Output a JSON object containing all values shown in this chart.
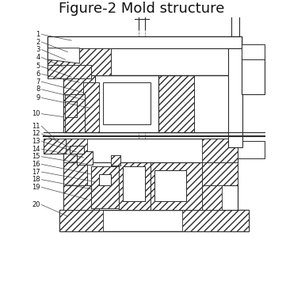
{
  "title": "Figure-2 Mold structure",
  "title_fontsize": 13,
  "bg_color": "#ffffff",
  "line_color": "#2a2a2a",
  "figsize": [
    3.61,
    3.75
  ],
  "dpi": 100
}
